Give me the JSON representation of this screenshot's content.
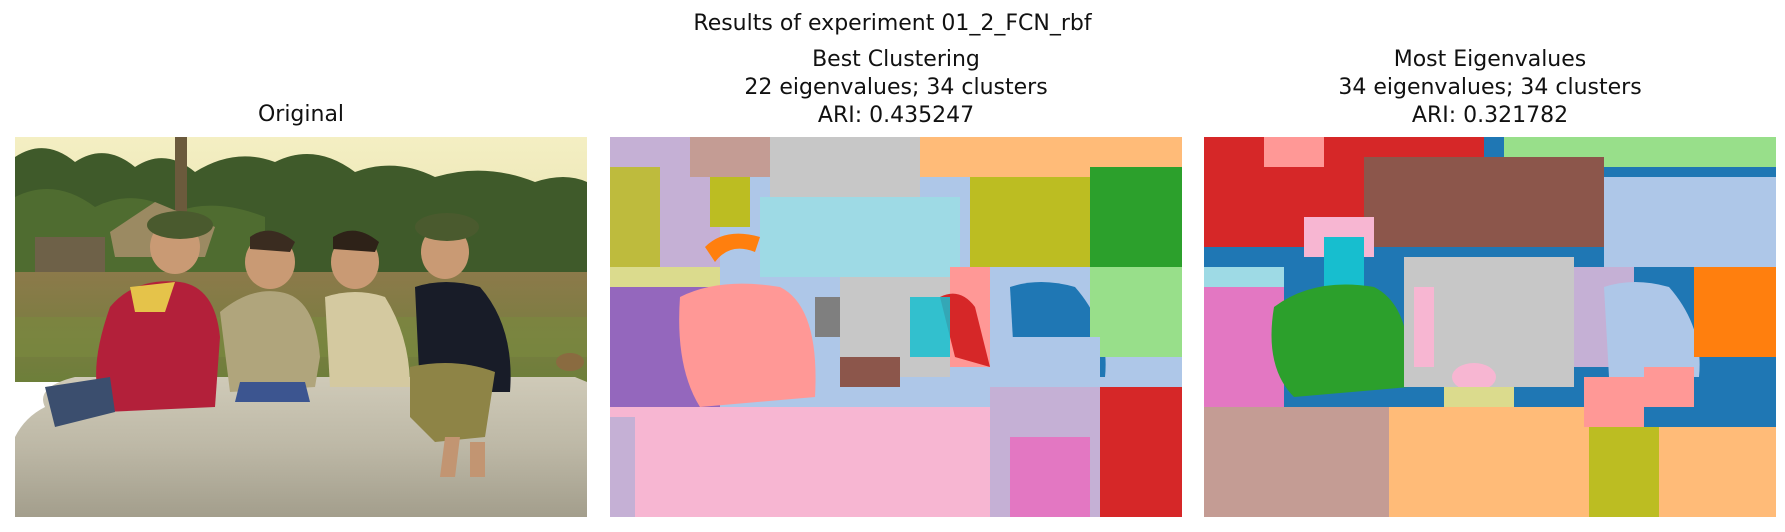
{
  "figure": {
    "suptitle": "Results of experiment 01_2_FCN_rbf"
  },
  "panels": [
    {
      "title_lines": [
        "Original"
      ],
      "content": "photo"
    },
    {
      "title_lines": [
        "Best Clustering",
        "22 eigenvalues; 34 clusters",
        "ARI: 0.435247"
      ],
      "content": "segmentation",
      "eigenvalues": 22,
      "clusters": 34,
      "ari": 0.435247
    },
    {
      "title_lines": [
        "Most Eigenvalues",
        "34 eigenvalues; 34 clusters",
        "ARI: 0.321782"
      ],
      "content": "segmentation",
      "eigenvalues": 34,
      "clusters": 34,
      "ari": 0.321782
    }
  ],
  "colors": {
    "tab_blue": "#1f77b4",
    "tab_orange": "#ff7f0e",
    "tab_green": "#2ca02c",
    "tab_red": "#d62728",
    "tab_purple": "#9467bd",
    "tab_brown": "#8c564b",
    "tab_pink": "#e377c2",
    "tab_gray": "#7f7f7f",
    "tab_olive": "#bcbd22",
    "tab_cyan": "#17becf",
    "light_blue": "#aec7e8",
    "light_orange": "#ffbb78",
    "light_green": "#98df8a",
    "light_red": "#ff9896",
    "light_purple": "#c5b0d5",
    "light_brown": "#c49c94",
    "light_pink": "#f7b6d2",
    "light_gray": "#c7c7c7",
    "light_olive": "#dbdb8d",
    "light_cyan": "#9edae5"
  }
}
